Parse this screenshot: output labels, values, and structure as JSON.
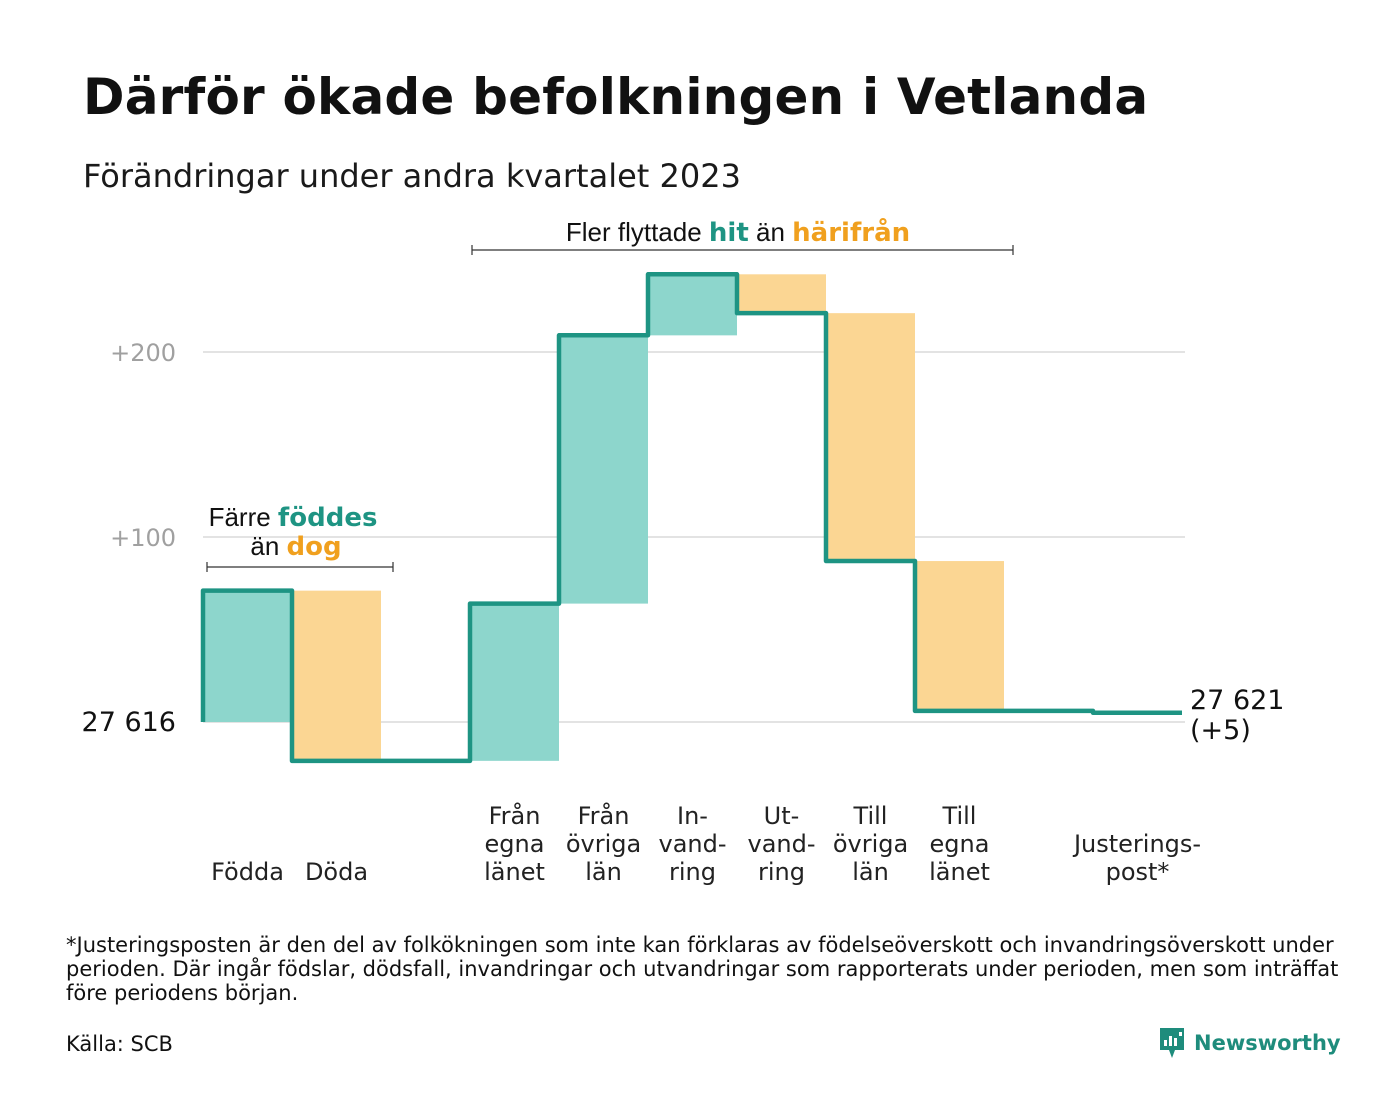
{
  "title": "Därför ökade befolkningen i Vetlanda",
  "subtitle": "Förändringar under andra kvartalet 2023",
  "colors": {
    "inflow_fill": "#8dd6cc",
    "outflow_fill": "#fbd693",
    "line": "#1e9483",
    "accent_green": "#1e9483",
    "accent_orange": "#f0a01e",
    "grid": "#e3e3e3"
  },
  "annotations": {
    "births": {
      "line1": "Färre",
      "line1_bold": "föddes",
      "line2": "än",
      "line2_bold": "dog"
    },
    "migration": {
      "text": "Fler flyttade",
      "bold1": "hit",
      "mid": "än",
      "bold2": "härifrån"
    }
  },
  "chart_data": {
    "type": "waterfall",
    "start_value": 27616,
    "start_label": "27  616",
    "end_value": 27621,
    "end_label": "27 621",
    "end_change_label": "(+5)",
    "y_ticks": [
      {
        "value": 100,
        "label": "+100"
      },
      {
        "value": 200,
        "label": "+200"
      }
    ],
    "grid": true,
    "categories": [
      {
        "label": "Födda",
        "value": 71,
        "kind": "in"
      },
      {
        "label": "Döda",
        "value": -92,
        "kind": "out"
      },
      {
        "label": "",
        "value": 0,
        "kind": "gap"
      },
      {
        "label": "Från egna länet",
        "label_lines": [
          "Från",
          "egna",
          "länet"
        ],
        "value": 85,
        "kind": "in"
      },
      {
        "label": "Från övriga län",
        "label_lines": [
          "Från",
          "övriga",
          "län"
        ],
        "value": 145,
        "kind": "in"
      },
      {
        "label": "In-vand-ring",
        "label_lines": [
          "In-",
          "vand-",
          "ring"
        ],
        "value": 33,
        "kind": "in"
      },
      {
        "label": "Ut-vand-ring",
        "label_lines": [
          "Ut-",
          "vand-",
          "ring"
        ],
        "value": -21,
        "kind": "out"
      },
      {
        "label": "Till övriga län",
        "label_lines": [
          "Till",
          "övriga",
          "län"
        ],
        "value": -134,
        "kind": "out"
      },
      {
        "label": "Till egna länet",
        "label_lines": [
          "Till",
          "egna",
          "länet"
        ],
        "value": -81,
        "kind": "out"
      },
      {
        "label": "",
        "value": 0,
        "kind": "gap"
      },
      {
        "label": "Justerings-post*",
        "label_lines": [
          "Justerings-",
          "post*"
        ],
        "value": -1,
        "kind": "adjust"
      }
    ]
  },
  "footnote": "*Justeringsposten är den del av folkökningen som inte kan förklaras av födelseöverskott och invandringsöverskott under perioden. Där ingår födslar, dödsfall, invandringar och utvandringar som rapporterats under perioden, men som inträffat före periodens början.",
  "source": "Källa: SCB",
  "brand": {
    "name": "Newsworthy",
    "icon": "newsworthy-logo-icon"
  }
}
